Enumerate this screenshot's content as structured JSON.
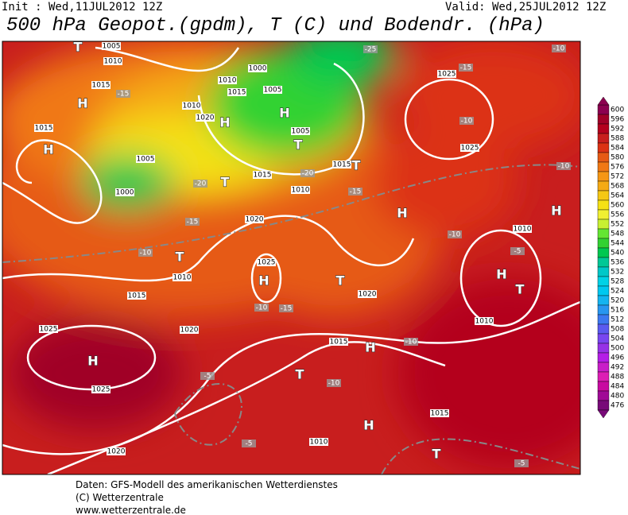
{
  "header": {
    "init": "Init : Wed,11JUL2012 12Z",
    "valid": "Valid: Wed,25JUL2012 12Z",
    "title": "500 hPa Geopot.(gpdm), T (C) und Bodendr. (hPa)"
  },
  "colorbar": [
    {
      "value": 600,
      "color": "#8c0050"
    },
    {
      "value": 596,
      "color": "#a00028"
    },
    {
      "value": 592,
      "color": "#b4001e"
    },
    {
      "value": 588,
      "color": "#c81e1e"
    },
    {
      "value": 584,
      "color": "#dc3214"
    },
    {
      "value": 580,
      "color": "#e65a14"
    },
    {
      "value": 576,
      "color": "#f07814"
    },
    {
      "value": 572,
      "color": "#f59614"
    },
    {
      "value": 568,
      "color": "#f5aa14"
    },
    {
      "value": 564,
      "color": "#f5c814"
    },
    {
      "value": 560,
      "color": "#f5e114"
    },
    {
      "value": 556,
      "color": "#f0f032"
    },
    {
      "value": 552,
      "color": "#c8f032"
    },
    {
      "value": 548,
      "color": "#64e632"
    },
    {
      "value": 544,
      "color": "#32d232"
    },
    {
      "value": 540,
      "color": "#00c850"
    },
    {
      "value": 536,
      "color": "#00c896"
    },
    {
      "value": 532,
      "color": "#00c8c8"
    },
    {
      "value": 528,
      "color": "#00d2e6"
    },
    {
      "value": 524,
      "color": "#00c8f0"
    },
    {
      "value": 520,
      "color": "#14b4f0"
    },
    {
      "value": 516,
      "color": "#2896f0"
    },
    {
      "value": 512,
      "color": "#3c78f0"
    },
    {
      "value": 508,
      "color": "#5a5af0"
    },
    {
      "value": 504,
      "color": "#7846f0"
    },
    {
      "value": 500,
      "color": "#9632e6"
    },
    {
      "value": 496,
      "color": "#b41ee6"
    },
    {
      "value": 492,
      "color": "#c81ec8"
    },
    {
      "value": 488,
      "color": "#dc1eb4"
    },
    {
      "value": 484,
      "color": "#c80aa0"
    },
    {
      "value": 480,
      "color": "#a00a96"
    },
    {
      "value": 476,
      "color": "#780a78"
    }
  ],
  "isobar_labels": [
    "1005",
    "1010",
    "1015",
    "1015",
    "1005",
    "1000",
    "1010",
    "1020",
    "1010",
    "1015",
    "1000",
    "1005",
    "1005",
    "1015",
    "1010",
    "1015",
    "1020",
    "1025",
    "1010",
    "1015",
    "1020",
    "1025",
    "1025",
    "1020",
    "1025",
    "1025",
    "1010",
    "1010",
    "1020",
    "1015",
    "1015",
    "1010"
  ],
  "temperature_labels": [
    "-25",
    "-15",
    "-10",
    "-15",
    "-10",
    "-10",
    "-20",
    "-20",
    "-15",
    "-15",
    "-10",
    "-10",
    "-5",
    "-10",
    "-15",
    "-10",
    "-5",
    "-10",
    "-5",
    "-5"
  ],
  "pressure_centers": [
    "H",
    "H",
    "H",
    "H",
    "T",
    "T",
    "T",
    "H",
    "H",
    "T",
    "H",
    "T",
    "H",
    "T",
    "H",
    "H",
    "T",
    "H",
    "T",
    "T"
  ],
  "footer": [
    "Daten: GFS-Modell des amerikanischen Wetterdienstes",
    "(C) Wetterzentrale",
    "www.wetterzentrale.de"
  ]
}
